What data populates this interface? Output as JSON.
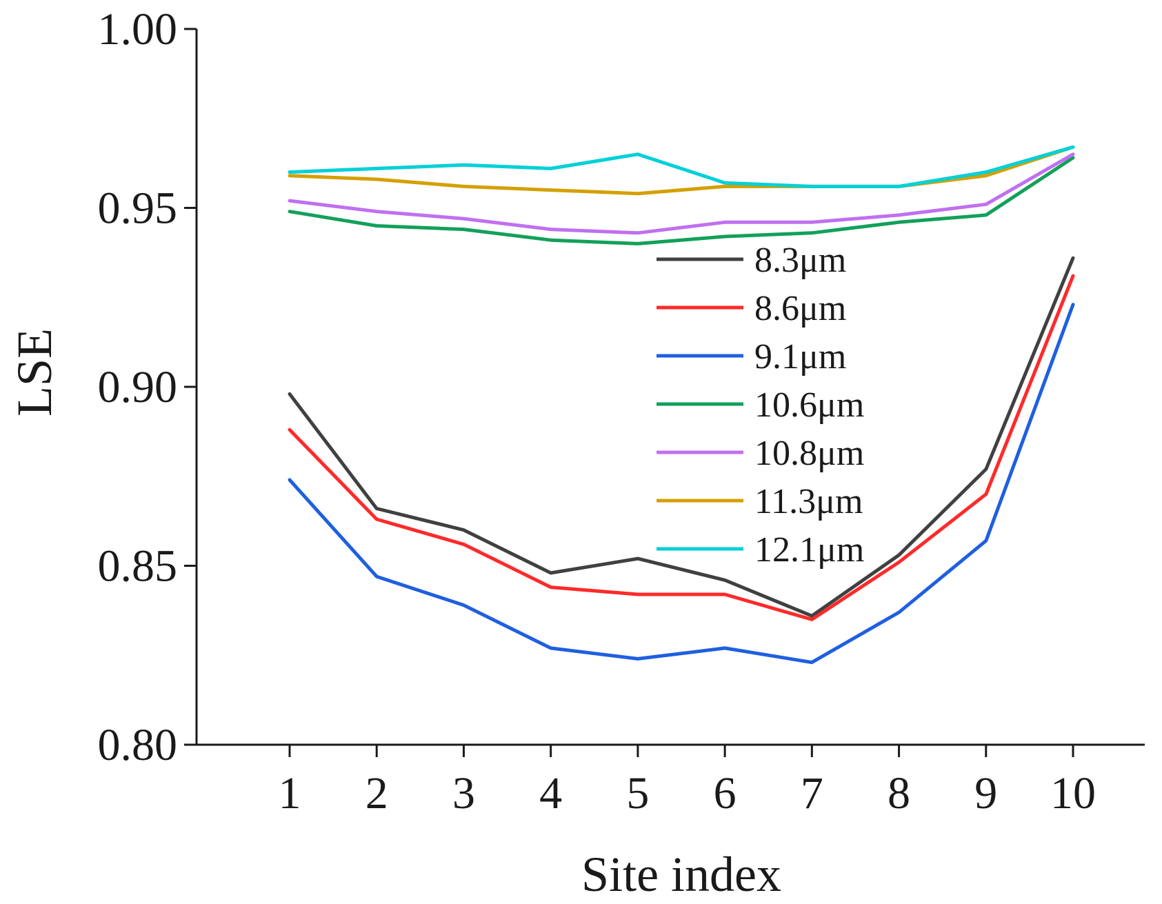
{
  "chart_data": {
    "type": "line",
    "title": "",
    "xlabel": "Site index",
    "ylabel": "LSE",
    "x": [
      1,
      2,
      3,
      4,
      5,
      6,
      7,
      8,
      9,
      10
    ],
    "x_tick_labels": [
      "1",
      "2",
      "3",
      "4",
      "5",
      "6",
      "7",
      "8",
      "9",
      "10"
    ],
    "ylim": [
      0.8,
      1.0
    ],
    "y_ticks": [
      0.8,
      0.85,
      0.9,
      0.95,
      1.0
    ],
    "y_tick_labels": [
      "0.80",
      "0.85",
      "0.90",
      "0.95",
      "1.00"
    ],
    "grid": false,
    "legend_position": "center-right",
    "series": [
      {
        "name": "8.3μm",
        "color": "#404040",
        "values": [
          0.898,
          0.866,
          0.86,
          0.848,
          0.852,
          0.846,
          0.836,
          0.853,
          0.877,
          0.936
        ]
      },
      {
        "name": "8.6μm",
        "color": "#ff2a2a",
        "values": [
          0.888,
          0.863,
          0.856,
          0.844,
          0.842,
          0.842,
          0.835,
          0.851,
          0.87,
          0.931
        ]
      },
      {
        "name": "9.1μm",
        "color": "#1f5fe0",
        "values": [
          0.874,
          0.847,
          0.839,
          0.827,
          0.824,
          0.827,
          0.823,
          0.837,
          0.857,
          0.923
        ]
      },
      {
        "name": "10.6μm",
        "color": "#12a05a",
        "values": [
          0.949,
          0.945,
          0.944,
          0.941,
          0.94,
          0.942,
          0.943,
          0.946,
          0.948,
          0.964
        ]
      },
      {
        "name": "10.8μm",
        "color": "#c070f0",
        "values": [
          0.952,
          0.949,
          0.947,
          0.944,
          0.943,
          0.946,
          0.946,
          0.948,
          0.951,
          0.965
        ]
      },
      {
        "name": "11.3μm",
        "color": "#d4a000",
        "values": [
          0.959,
          0.958,
          0.956,
          0.955,
          0.954,
          0.956,
          0.956,
          0.956,
          0.959,
          0.967
        ]
      },
      {
        "name": "12.1μm",
        "color": "#00d0d8",
        "values": [
          0.96,
          0.961,
          0.962,
          0.961,
          0.965,
          0.957,
          0.956,
          0.956,
          0.96,
          0.967
        ]
      }
    ]
  }
}
